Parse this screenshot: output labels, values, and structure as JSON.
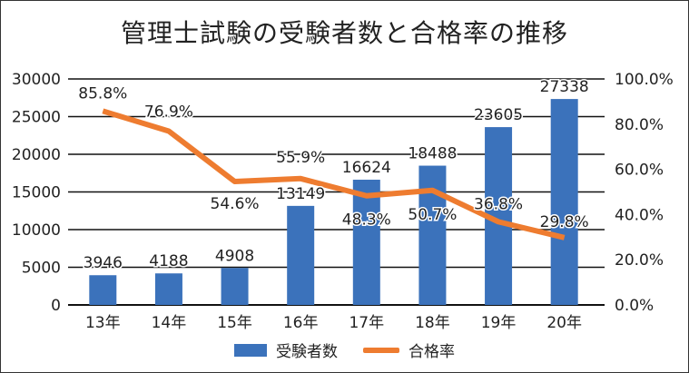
{
  "chart_data": {
    "type": "bar+line",
    "title": "管理士試験の受験者数と合格率の推移",
    "categories": [
      "13年",
      "14年",
      "15年",
      "16年",
      "17年",
      "18年",
      "19年",
      "20年"
    ],
    "series": [
      {
        "name": "受験者数",
        "type": "bar",
        "axis": "left",
        "color": "#3b72bb",
        "values": [
          3946,
          4188,
          4908,
          13149,
          16624,
          18488,
          23605,
          27338
        ],
        "labels": [
          "3946",
          "4188",
          "4908",
          "13149",
          "16624",
          "18488",
          "23605",
          "27338"
        ]
      },
      {
        "name": "合格率",
        "type": "line",
        "axis": "right",
        "color": "#ee7c30",
        "values": [
          85.8,
          76.9,
          54.6,
          55.9,
          48.3,
          50.7,
          36.8,
          29.8
        ],
        "labels": [
          "85.8%",
          "76.9%",
          "54.6%",
          "55.9%",
          "48.3%",
          "50.7%",
          "36.8%",
          "29.8%"
        ]
      }
    ],
    "y_left": {
      "range": [
        0,
        30000
      ],
      "ticks": [
        "0",
        "5000",
        "10000",
        "15000",
        "20000",
        "25000",
        "30000"
      ]
    },
    "y_right": {
      "range": [
        0,
        100
      ],
      "ticks": [
        "0.0%",
        "20.0%",
        "40.0%",
        "60.0%",
        "80.0%",
        "100.0%"
      ]
    },
    "grid": true,
    "legend_position": "bottom"
  }
}
